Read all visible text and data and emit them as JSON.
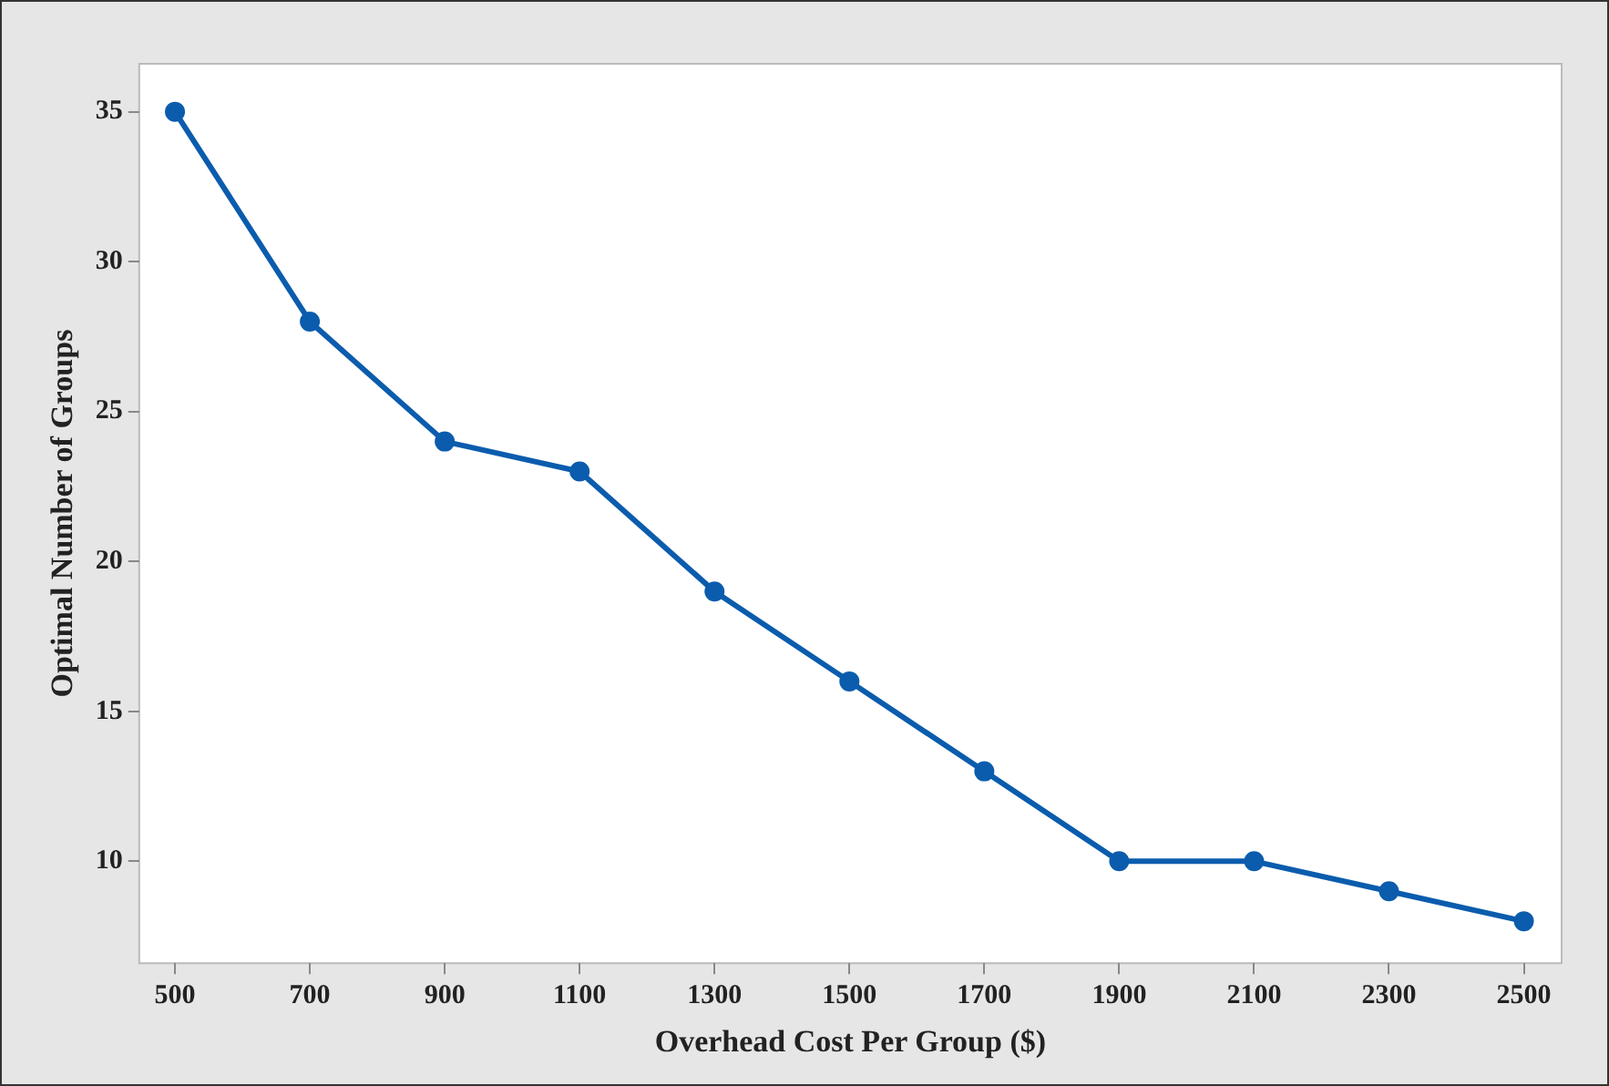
{
  "chart_data": {
    "type": "line",
    "xlabel": "Overhead Cost Per Group ($)",
    "ylabel": "Optimal Number of Groups",
    "x": [
      500,
      700,
      900,
      1100,
      1300,
      1500,
      1700,
      1900,
      2100,
      2300,
      2500
    ],
    "series": [
      {
        "color": "#0b5cad",
        "values": [
          35,
          28,
          24,
          23,
          19,
          16,
          13,
          10,
          10,
          9,
          8
        ]
      }
    ],
    "xlim": [
      447,
      2556
    ],
    "xticks": [
      500,
      700,
      900,
      1100,
      1300,
      1500,
      1700,
      1900,
      2100,
      2300,
      2500
    ],
    "ylim": [
      6.6,
      36.6
    ],
    "yticks": [
      10,
      15,
      20,
      25,
      30,
      35
    ],
    "grid": false,
    "legend": false,
    "marker": "circle",
    "line_style": "solid"
  }
}
